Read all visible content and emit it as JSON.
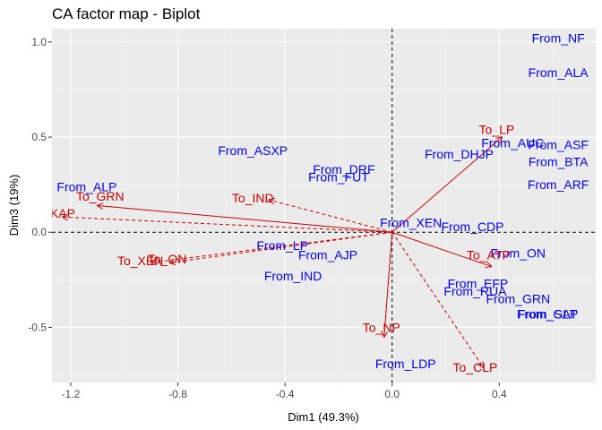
{
  "chart_data": {
    "type": "scatter",
    "title": "CA factor map - Biplot",
    "xlabel": "Dim1 (49.3%)",
    "ylabel": "Dim3 (19%)",
    "xlim": [
      -1.27,
      0.76
    ],
    "ylim": [
      -0.79,
      1.07
    ],
    "x_ticks": [
      -1.2,
      -0.8,
      -0.4,
      0.0,
      0.4
    ],
    "x_tick_labels": [
      "-1.2",
      "-0.8",
      "-0.4",
      "0.0",
      "0.4"
    ],
    "y_ticks": [
      -0.5,
      0.0,
      0.5,
      1.0
    ],
    "y_tick_labels": [
      "-0.5",
      "0.0",
      "0.5",
      "1.0"
    ],
    "grid": true,
    "colors": {
      "row": "#0000ff",
      "col": "#cc0000",
      "panel": "#ebebeb",
      "grid_major": "#ffffff",
      "grid_minor": "#f5f5f5"
    },
    "row_points": [
      {
        "label": "From_NF",
        "x": 0.62,
        "y": 1.02
      },
      {
        "label": "From_ALA",
        "x": 0.62,
        "y": 0.84
      },
      {
        "label": "From_AUC",
        "x": 0.45,
        "y": 0.47
      },
      {
        "label": "From_ASF",
        "x": 0.62,
        "y": 0.46
      },
      {
        "label": "From_BTA",
        "x": 0.62,
        "y": 0.37
      },
      {
        "label": "From_ARF",
        "x": 0.62,
        "y": 0.25
      },
      {
        "label": "From_ASXP",
        "x": -0.52,
        "y": 0.43
      },
      {
        "label": "From_DHJP",
        "x": 0.25,
        "y": 0.41
      },
      {
        "label": "From_DRF",
        "x": -0.18,
        "y": 0.33
      },
      {
        "label": "From_FUT",
        "x": -0.2,
        "y": 0.29
      },
      {
        "label": "From_ALP",
        "x": -1.14,
        "y": 0.24
      },
      {
        "label": "From_XEN",
        "x": 0.07,
        "y": 0.05
      },
      {
        "label": "From_CDP",
        "x": 0.3,
        "y": 0.03
      },
      {
        "label": "From_LP",
        "x": -0.41,
        "y": -0.07
      },
      {
        "label": "From_AJP",
        "x": -0.24,
        "y": -0.12
      },
      {
        "label": "From_ON",
        "x": 0.47,
        "y": -0.11
      },
      {
        "label": "From_IND",
        "x": -0.37,
        "y": -0.23
      },
      {
        "label": "From_EFP",
        "x": 0.32,
        "y": -0.27
      },
      {
        "label": "From_RUA",
        "x": 0.31,
        "y": -0.31
      },
      {
        "label": "From_GRN",
        "x": 0.47,
        "y": -0.35
      },
      {
        "label": "From_GLP",
        "x": 0.58,
        "y": -0.43
      },
      {
        "label": "From_SAT",
        "x": 0.58,
        "y": -0.43
      },
      {
        "label": "From_LDP",
        "x": 0.05,
        "y": -0.69
      }
    ],
    "col_points": [
      {
        "label": "To_LP",
        "x": 0.39,
        "y": 0.54
      },
      {
        "label": "To_GRN",
        "x": -1.09,
        "y": 0.19
      },
      {
        "label": "KAP",
        "x": -1.23,
        "y": 0.1
      },
      {
        "label": "To_IND",
        "x": -0.52,
        "y": 0.18
      },
      {
        "label": "To_ATP",
        "x": 0.36,
        "y": -0.12
      },
      {
        "label": "To_XEN",
        "x": -0.94,
        "y": -0.15
      },
      {
        "label": "To_ON",
        "x": -0.84,
        "y": -0.14
      },
      {
        "label": "To_NP",
        "x": -0.04,
        "y": -0.5
      },
      {
        "label": "To_CLP",
        "x": 0.31,
        "y": -0.71
      }
    ],
    "arrows": [
      {
        "to": "To_LP",
        "x": 0.41,
        "y": 0.5,
        "style": "solid"
      },
      {
        "to": "To_GRN",
        "x": -1.1,
        "y": 0.14,
        "style": "solid"
      },
      {
        "to": "To_ATP",
        "x": 0.37,
        "y": -0.18,
        "style": "solid"
      },
      {
        "to": "To_NP",
        "x": -0.03,
        "y": -0.55,
        "style": "solid"
      },
      {
        "to": "KAP",
        "x": -1.23,
        "y": 0.08,
        "style": "dashed"
      },
      {
        "to": "To_IND",
        "x": -0.46,
        "y": 0.17,
        "style": "dashed"
      },
      {
        "to": "To_XEN",
        "x": -0.9,
        "y": -0.16,
        "style": "dashed"
      },
      {
        "to": "To_ON",
        "x": -0.83,
        "y": -0.16,
        "style": "dashed"
      },
      {
        "to": "To_CLP",
        "x": 0.34,
        "y": -0.71,
        "style": "dashed"
      }
    ]
  }
}
